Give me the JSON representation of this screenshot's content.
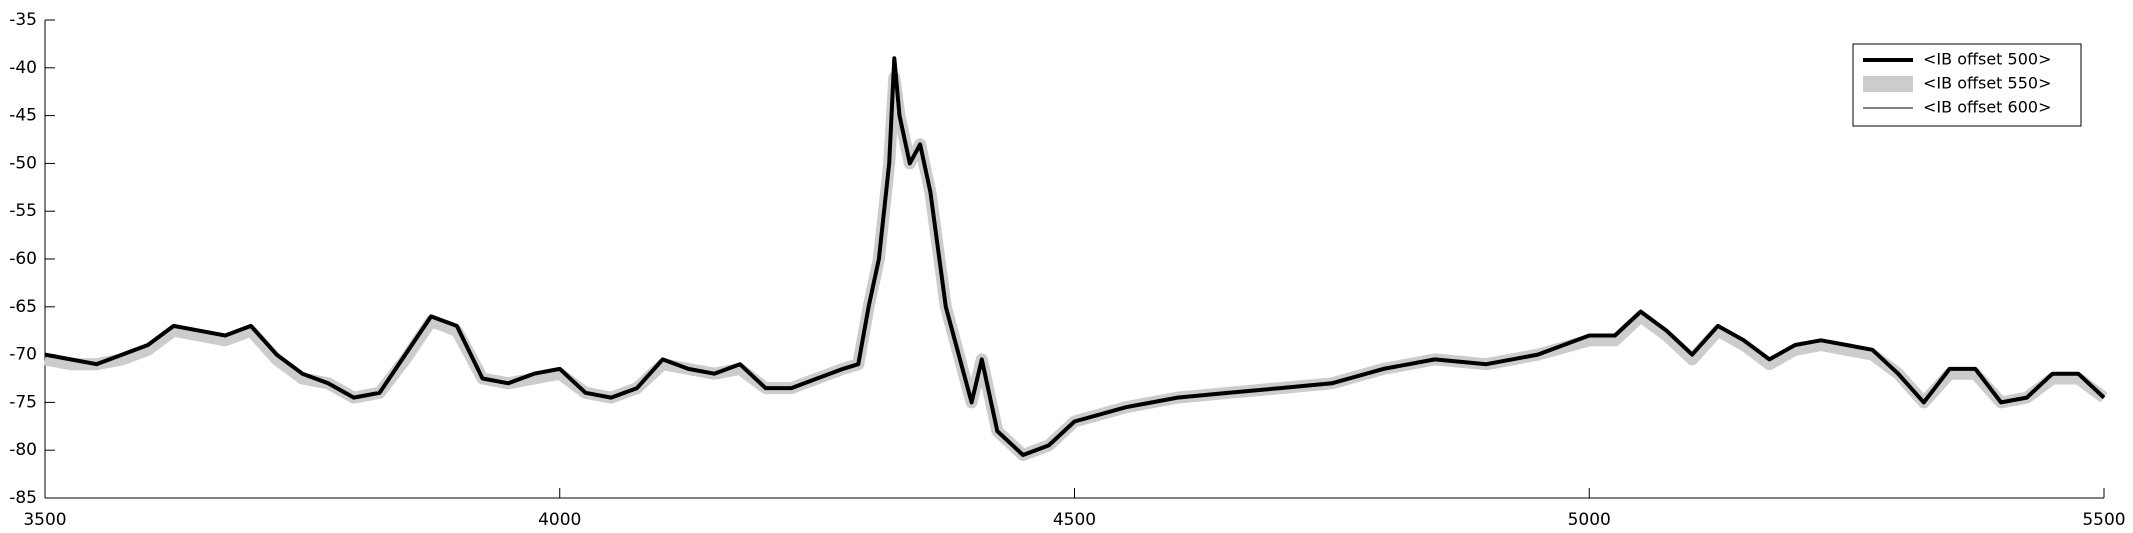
{
  "chart_data": {
    "type": "line",
    "x": [
      3500,
      3525,
      3550,
      3575,
      3600,
      3625,
      3650,
      3675,
      3700,
      3725,
      3750,
      3775,
      3800,
      3825,
      3850,
      3875,
      3900,
      3925,
      3950,
      3975,
      4000,
      4025,
      4050,
      4075,
      4100,
      4125,
      4150,
      4175,
      4200,
      4225,
      4250,
      4275,
      4290,
      4300,
      4310,
      4320,
      4325,
      4330,
      4340,
      4350,
      4360,
      4375,
      4400,
      4410,
      4425,
      4450,
      4475,
      4500,
      4550,
      4600,
      4650,
      4700,
      4750,
      4800,
      4850,
      4900,
      4950,
      5000,
      5025,
      5050,
      5075,
      5100,
      5125,
      5150,
      5175,
      5200,
      5225,
      5250,
      5275,
      5300,
      5325,
      5350,
      5375,
      5400,
      5425,
      5450,
      5475,
      5500
    ],
    "series": [
      {
        "name": "<IB offset 550>",
        "color": "#cccccc",
        "line_width": 12,
        "values": [
          -70.5,
          -71,
          -71,
          -70.5,
          -69.5,
          -67.5,
          -68,
          -68.5,
          -67.5,
          -70.5,
          -72.5,
          -73,
          -74.5,
          -74,
          -70.5,
          -66.5,
          -67.5,
          -72.5,
          -73,
          -72.5,
          -72,
          -74,
          -74.5,
          -73.5,
          -71,
          -71.5,
          -72,
          -71.5,
          -73.5,
          -73.5,
          -72.5,
          -71.5,
          -71,
          -65,
          -60,
          -50,
          -41,
          -45,
          -50,
          -48,
          -53,
          -65,
          -75,
          -70.5,
          -78,
          -80.5,
          -79.5,
          -77,
          -75.5,
          -74.5,
          -74,
          -73.5,
          -73,
          -71.5,
          -70.5,
          -71,
          -70,
          -68.5,
          -68.5,
          -66,
          -68,
          -70.5,
          -67.5,
          -69,
          -71,
          -69.5,
          -69,
          -69.5,
          -70,
          -72,
          -75,
          -72,
          -72,
          -75,
          -74.5,
          -72.5,
          -72.5,
          -74.5
        ]
      },
      {
        "name": "<IB offset 600>",
        "color": "#000000",
        "line_width": 1,
        "values": [
          -70,
          -70.5,
          -71,
          -70,
          -69,
          -67,
          -67.5,
          -68,
          -67,
          -70,
          -72,
          -73,
          -74.5,
          -74,
          -70,
          -66,
          -67,
          -72.5,
          -73,
          -72,
          -71.5,
          -74,
          -74.5,
          -73.5,
          -70.5,
          -71.5,
          -72,
          -71,
          -73.5,
          -73.5,
          -72.5,
          -71.5,
          -71,
          -65,
          -60,
          -50,
          -40,
          -45,
          -50,
          -48,
          -53,
          -65,
          -75,
          -70.5,
          -78,
          -80.5,
          -79.5,
          -77,
          -75.5,
          -74.5,
          -74,
          -73.5,
          -73,
          -71.5,
          -70.5,
          -71,
          -70,
          -68,
          -68,
          -65.5,
          -67.5,
          -70,
          -67,
          -68.5,
          -70.5,
          -69,
          -68.5,
          -69,
          -69.5,
          -72,
          -75,
          -71.5,
          -71.5,
          -75,
          -74.5,
          -72,
          -72,
          -74.5
        ]
      },
      {
        "name": "<IB offset 500>",
        "color": "#000000",
        "line_width": 4,
        "values": [
          -70,
          -70.5,
          -71,
          -70,
          -69,
          -67,
          -67.5,
          -68,
          -67,
          -70,
          -72,
          -73,
          -74.5,
          -74,
          -70,
          -66,
          -67,
          -72.5,
          -73,
          -72,
          -71.5,
          -74,
          -74.5,
          -73.5,
          -70.5,
          -71.5,
          -72,
          -71,
          -73.5,
          -73.5,
          -72.5,
          -71.5,
          -71,
          -65,
          -60,
          -50,
          -39,
          -45,
          -50,
          -48,
          -53,
          -65,
          -75,
          -70.5,
          -78,
          -80.5,
          -79.5,
          -77,
          -75.5,
          -74.5,
          -74,
          -73.5,
          -73,
          -71.5,
          -70.5,
          -71,
          -70,
          -68,
          -68,
          -65.5,
          -67.5,
          -70,
          -67,
          -68.5,
          -70.5,
          -69,
          -68.5,
          -69,
          -69.5,
          -72,
          -75,
          -71.5,
          -71.5,
          -75,
          -74.5,
          -72,
          -72,
          -74.5
        ]
      }
    ],
    "legend_order": [
      2,
      0,
      1
    ],
    "legend": "upper right",
    "xlim": [
      3500,
      5500
    ],
    "xticks": [
      3500,
      4000,
      4500,
      5000,
      5500
    ],
    "ylim": [
      -85,
      -35
    ],
    "yticks": [
      -85,
      -80,
      -75,
      -70,
      -65,
      -60,
      -55,
      -50,
      -45,
      -40,
      -35
    ]
  }
}
